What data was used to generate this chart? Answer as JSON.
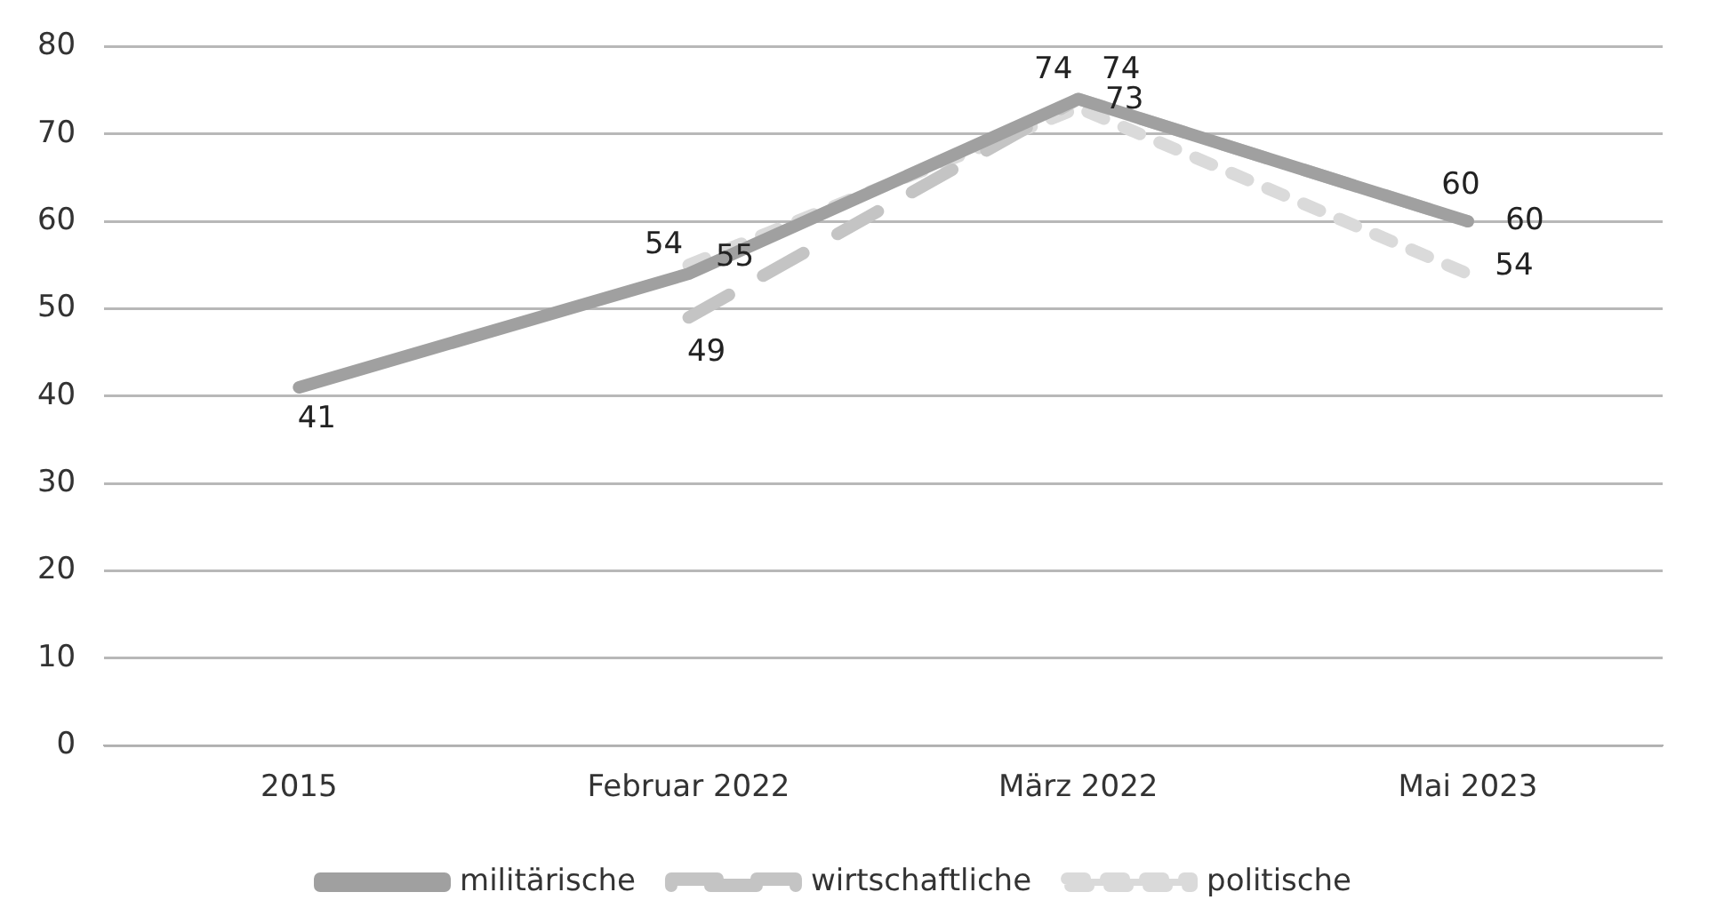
{
  "chart_data": {
    "type": "line",
    "categories": [
      "2015",
      "Februar 2022",
      "März 2022",
      "Mai 2023"
    ],
    "series": [
      {
        "name": "militärische",
        "color": "#a0a0a0",
        "line_style": "solid",
        "values": [
          41,
          54,
          74,
          60
        ]
      },
      {
        "name": "wirtschaftliche",
        "color": "#c4c4c4",
        "line_style": "dashed",
        "values": [
          null,
          49,
          74,
          60
        ]
      },
      {
        "name": "politische",
        "color": "#dadada",
        "line_style": "dotted",
        "values": [
          null,
          55,
          73,
          54
        ]
      }
    ],
    "ylim": [
      0,
      80
    ],
    "yticks": [
      0,
      10,
      20,
      30,
      40,
      50,
      60,
      70,
      80
    ],
    "grid": "y",
    "legend": "bottom",
    "marker": "none",
    "data_labels": true
  }
}
